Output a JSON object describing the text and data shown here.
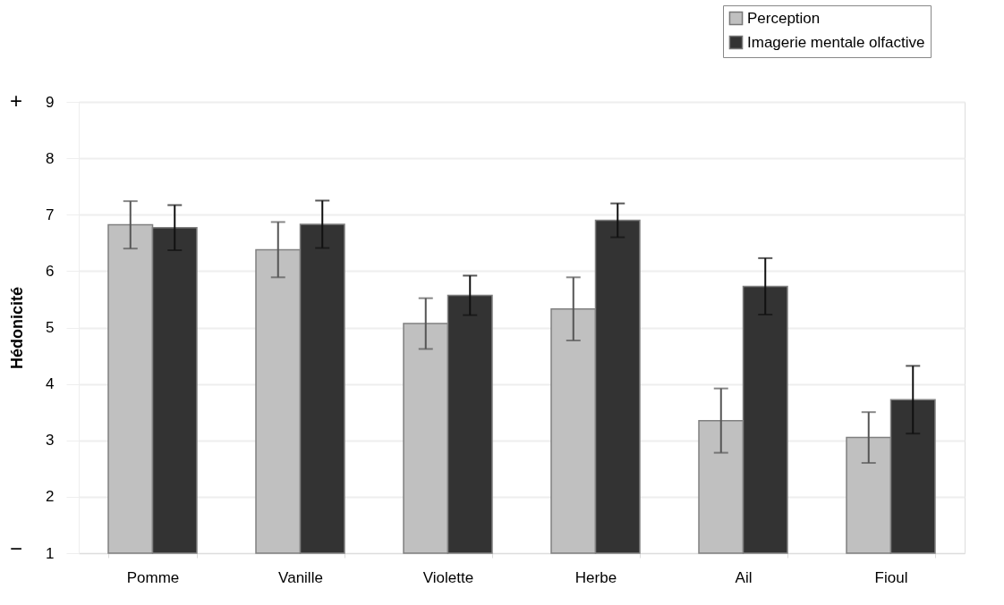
{
  "chart_data": {
    "type": "bar",
    "ylabel": "Hédonicité",
    "categories": [
      "Pomme",
      "Vanille",
      "Violette",
      "Herbe",
      "Ail",
      "Fioul"
    ],
    "series": [
      {
        "name": "Perception",
        "color": "#c0c0c0",
        "values": [
          6.82,
          6.38,
          5.07,
          5.33,
          3.35,
          3.05
        ],
        "errors": [
          0.42,
          0.49,
          0.45,
          0.56,
          0.57,
          0.45
        ]
      },
      {
        "name": "Imagerie mentale olfactive",
        "color": "#333333",
        "values": [
          6.77,
          6.83,
          5.57,
          6.9,
          5.73,
          3.72
        ],
        "errors": [
          0.4,
          0.42,
          0.35,
          0.3,
          0.5,
          0.6
        ]
      }
    ],
    "ylim": [
      1,
      9
    ],
    "yticks": [
      1,
      2,
      3,
      4,
      5,
      6,
      7,
      8,
      9
    ],
    "grid": "y",
    "legend": "top right",
    "annotations": [
      "+",
      "−"
    ]
  }
}
